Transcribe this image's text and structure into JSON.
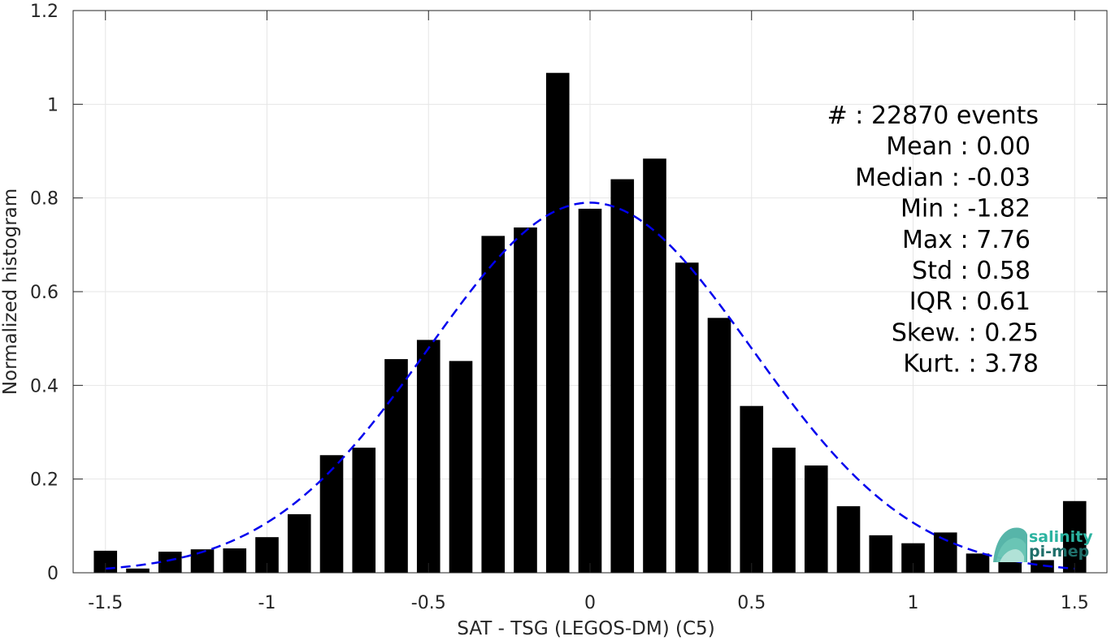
{
  "chart_data": {
    "type": "bar",
    "xlabel": "SAT - TSG (LEGOS-DM) (C5)",
    "ylabel": "Normalized histogram",
    "xlim": [
      -1.6,
      1.6
    ],
    "ylim": [
      0,
      1.2
    ],
    "xticks": [
      -1.5,
      -1,
      -0.5,
      0,
      0.5,
      1,
      1.5
    ],
    "xtick_labels": [
      "-1.5",
      "-1",
      "-0.5",
      "0",
      "0.5",
      "1",
      "1.5"
    ],
    "yticks": [
      0,
      0.2,
      0.4,
      0.6,
      0.8,
      1,
      1.2
    ],
    "ytick_labels": [
      "0",
      "0.2",
      "0.4",
      "0.6",
      "0.8",
      "1",
      "1.2"
    ],
    "grid": true,
    "bar_color": "#000000",
    "bin_centers": [
      -1.5,
      -1.4,
      -1.3,
      -1.2,
      -1.1,
      -1.0,
      -0.9,
      -0.8,
      -0.7,
      -0.6,
      -0.5,
      -0.4,
      -0.3,
      -0.2,
      -0.1,
      0.0,
      0.1,
      0.2,
      0.3,
      0.4,
      0.5,
      0.6,
      0.7,
      0.8,
      0.9,
      1.0,
      1.1,
      1.2,
      1.3,
      1.4,
      1.5
    ],
    "values": [
      0.047,
      0.009,
      0.045,
      0.05,
      0.052,
      0.076,
      0.125,
      0.251,
      0.267,
      0.456,
      0.497,
      0.452,
      0.719,
      0.737,
      1.067,
      0.777,
      0.84,
      0.884,
      0.662,
      0.544,
      0.356,
      0.267,
      0.229,
      0.142,
      0.08,
      0.063,
      0.086,
      0.041,
      0.025,
      0.027,
      0.153
    ],
    "fit_curve": {
      "style": "dashed",
      "color": "#0000ee",
      "distribution": "normal",
      "mean": 0.0,
      "std": 0.5,
      "peak": 0.79,
      "x_range": [
        -1.5,
        1.5
      ]
    },
    "stats_text": [
      "#  : 22870 events",
      "Mean : 0.00",
      "Median : -0.03",
      "Min : -1.82",
      "Max : 7.76",
      "Std : 0.58",
      "IQR : 0.61",
      "Skew. : 0.25",
      "Kurt. : 3.78"
    ]
  },
  "logo": {
    "line1": "salinity",
    "line2": "pi-mep",
    "color1": "#2bb3a0",
    "color2": "#1f6f6a"
  }
}
